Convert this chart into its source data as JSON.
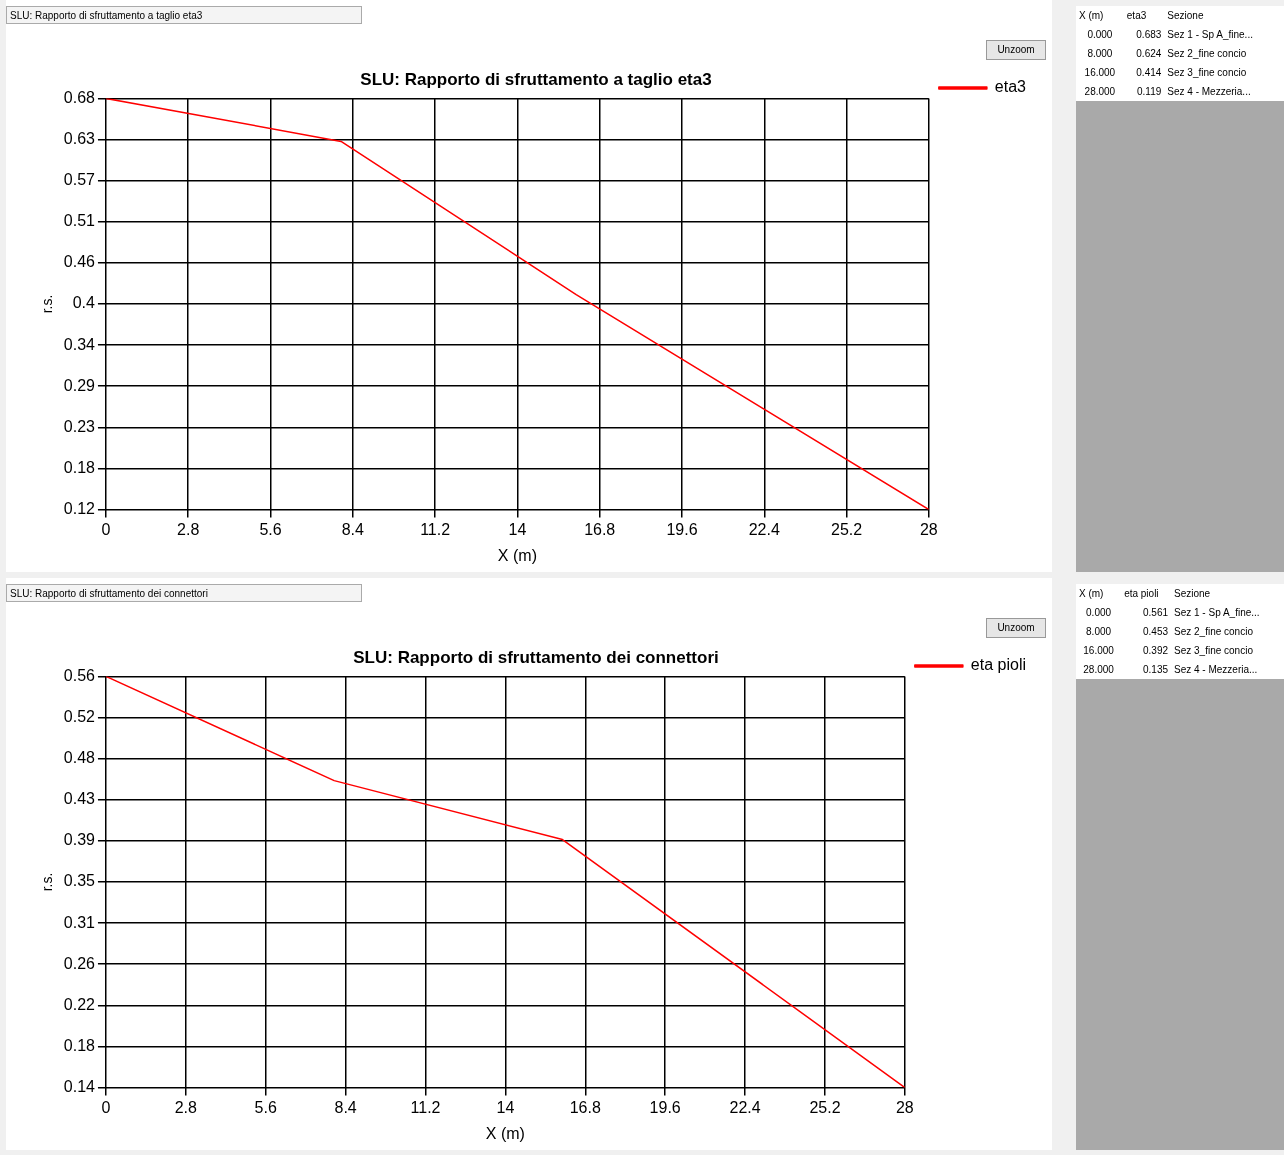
{
  "chart_data": [
    {
      "type": "line",
      "title": "SLU: Rapporto di sfruttamento a taglio eta3",
      "xlabel": "X (m)",
      "ylabel": "r.s.",
      "x": [
        0,
        8,
        16,
        28
      ],
      "series": [
        {
          "name": "eta3",
          "color": "#ff0000",
          "values": [
            0.683,
            0.624,
            0.414,
            0.119
          ]
        }
      ],
      "xlim": [
        0,
        28
      ],
      "xticks": [
        0,
        2.8,
        5.6,
        8.4,
        11.2,
        14,
        16.8,
        19.6,
        22.4,
        25.2,
        28
      ],
      "ylim": [
        0.119,
        0.683
      ],
      "yticks": [
        {
          "value": 0.119,
          "label": "0.12"
        },
        {
          "value": 0.1754,
          "label": "0.18"
        },
        {
          "value": 0.2318,
          "label": "0.23"
        },
        {
          "value": 0.2882,
          "label": "0.29"
        },
        {
          "value": 0.3446,
          "label": "0.34"
        },
        {
          "value": 0.401,
          "label": "0.4"
        },
        {
          "value": 0.4574,
          "label": "0.46"
        },
        {
          "value": 0.5138,
          "label": "0.51"
        },
        {
          "value": 0.5702,
          "label": "0.57"
        },
        {
          "value": 0.6266,
          "label": "0.63"
        },
        {
          "value": 0.683,
          "label": "0.68"
        }
      ],
      "grid": true,
      "legend": "right",
      "marker": "none",
      "line_style": "solid",
      "annotations": [
        "SLU: Rapporto di sfruttamento a taglio eta3",
        "Unzoom",
        "Sezione",
        "0.000",
        "0.683",
        "Sez 1 - Sp A_fine...",
        "8.000",
        "0.624",
        "Sez 2_fine concio",
        "16.000",
        "0.414",
        "Sez 3_fine concio",
        "28.000",
        "0.119",
        "Sez 4 - Mezzeria..."
      ]
    },
    {
      "type": "line",
      "title": "SLU: Rapporto di sfruttamento dei connettori",
      "xlabel": "X (m)",
      "ylabel": "r.s.",
      "x": [
        0,
        8,
        16,
        28
      ],
      "series": [
        {
          "name": "eta pioli",
          "color": "#ff0000",
          "values": [
            0.561,
            0.453,
            0.392,
            0.135
          ]
        }
      ],
      "xlim": [
        0,
        28
      ],
      "xticks": [
        0,
        2.8,
        5.6,
        8.4,
        11.2,
        14,
        16.8,
        19.6,
        22.4,
        25.2,
        28
      ],
      "ylim": [
        0.135,
        0.561
      ],
      "yticks": [
        {
          "value": 0.135,
          "label": "0.14"
        },
        {
          "value": 0.1776,
          "label": "0.18"
        },
        {
          "value": 0.2202,
          "label": "0.22"
        },
        {
          "value": 0.2628,
          "label": "0.26"
        },
        {
          "value": 0.3054,
          "label": "0.31"
        },
        {
          "value": 0.348,
          "label": "0.35"
        },
        {
          "value": 0.3906,
          "label": "0.39"
        },
        {
          "value": 0.4332,
          "label": "0.43"
        },
        {
          "value": 0.4758,
          "label": "0.48"
        },
        {
          "value": 0.5184,
          "label": "0.52"
        },
        {
          "value": 0.561,
          "label": "0.56"
        }
      ],
      "grid": true,
      "legend": "right",
      "marker": "none",
      "line_style": "solid",
      "annotations": [
        "SLU: Rapporto di sfruttamento dei connettori",
        "Unzoom",
        "Sezione",
        "0.000",
        "0.561",
        "Sez 1 - Sp A_fine...",
        "8.000",
        "0.453",
        "Sez 2_fine concio",
        "16.000",
        "0.392",
        "Sez 3_fine concio",
        "28.000",
        "0.135",
        "Sez 4 - Mezzeria..."
      ]
    }
  ]
}
